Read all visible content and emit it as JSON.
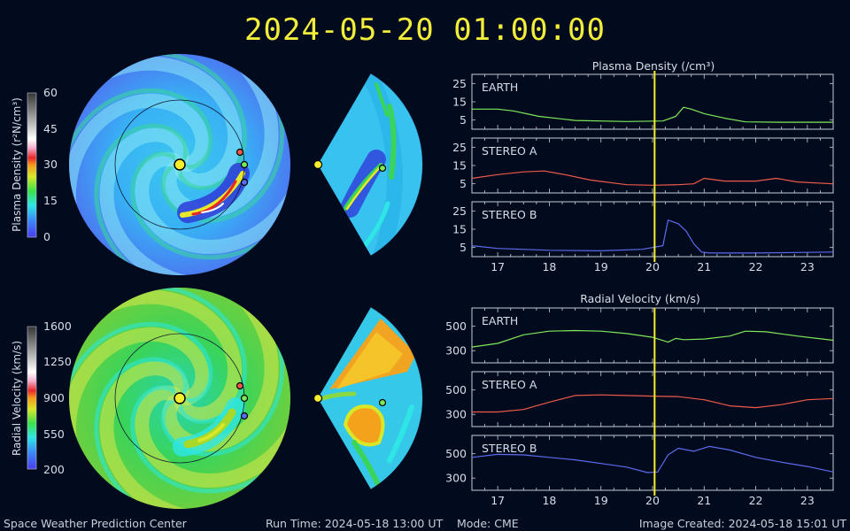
{
  "header": {
    "date_time": "2024-05-20 01:00:00"
  },
  "footer": {
    "center": "Space Weather Prediction Center",
    "run_time": "Run Time: 2024-05-18 13:00 UT",
    "mode": "Mode: CME",
    "image_created": "Image Created: 2024-05-18 15:01 UT"
  },
  "colors": {
    "earth": "#7ee85a",
    "stereo_a": "#ee5a4a",
    "stereo_b": "#5a6cf0",
    "marker": "#f6ee2c"
  },
  "density_colorbar": {
    "label": "Plasma Density (r²N/cm³)",
    "ticks": [
      "60",
      "45",
      "30",
      "15",
      "0"
    ]
  },
  "velocity_colorbar": {
    "label": "Radial Velocity (km/s)",
    "ticks": [
      "1600",
      "1250",
      "900",
      "550",
      "200"
    ]
  },
  "chart_data": [
    {
      "type": "line",
      "title": "Plasma Density (/cm³)",
      "x_ticks": [
        "17",
        "18",
        "19",
        "20",
        "21",
        "22",
        "23"
      ],
      "xlim": [
        16.5,
        23.5
      ],
      "ylim": [
        0,
        30
      ],
      "y_ticks": [
        "25",
        "15",
        "5"
      ],
      "current_time": 20.04,
      "series": [
        {
          "name": "EARTH",
          "x": [
            16.5,
            17.0,
            17.3,
            17.8,
            18.5,
            19.5,
            20.2,
            20.45,
            20.6,
            20.75,
            21.0,
            21.4,
            21.8,
            22.5,
            23.5
          ],
          "values": [
            11,
            11,
            10,
            7,
            4.8,
            4.2,
            4.5,
            7,
            12,
            11,
            8.5,
            6,
            4,
            3.8,
            3.8
          ]
        },
        {
          "name": "STEREO A",
          "x": [
            16.5,
            17.0,
            17.5,
            17.9,
            18.3,
            18.8,
            19.5,
            20.0,
            20.5,
            20.8,
            21.0,
            21.4,
            22.0,
            22.4,
            22.8,
            23.5
          ],
          "values": [
            8,
            10,
            11.5,
            12,
            10,
            7,
            4.5,
            4.2,
            4.5,
            5,
            8,
            6.5,
            6.5,
            8,
            6,
            5
          ]
        },
        {
          "name": "STEREO B",
          "x": [
            16.5,
            17.0,
            18.0,
            19.0,
            19.8,
            20.2,
            20.3,
            20.5,
            20.65,
            20.8,
            20.95,
            21.1,
            22.0,
            23.5
          ],
          "values": [
            6,
            4.5,
            3.5,
            3.2,
            4,
            6,
            20,
            18,
            14,
            7,
            2.5,
            2,
            2,
            2.5
          ]
        }
      ]
    },
    {
      "type": "line",
      "title": "Radial Velocity (km/s)",
      "x_ticks": [
        "17",
        "18",
        "19",
        "20",
        "21",
        "22",
        "23"
      ],
      "xlim": [
        16.5,
        23.5
      ],
      "ylim": [
        200,
        650
      ],
      "y_ticks": [
        "500",
        "300"
      ],
      "current_time": 20.04,
      "series": [
        {
          "name": "EARTH",
          "x": [
            16.5,
            17.0,
            17.5,
            18.0,
            18.5,
            19.0,
            19.5,
            20.0,
            20.3,
            20.45,
            20.6,
            21.0,
            21.5,
            21.8,
            22.2,
            22.8,
            23.5
          ],
          "values": [
            330,
            360,
            430,
            460,
            465,
            460,
            440,
            410,
            370,
            400,
            390,
            395,
            420,
            460,
            455,
            420,
            385
          ]
        },
        {
          "name": "STEREO A",
          "x": [
            16.5,
            17.0,
            17.5,
            18.0,
            18.5,
            19.0,
            19.5,
            20.0,
            20.5,
            21.0,
            21.5,
            22.0,
            22.5,
            23.0,
            23.5
          ],
          "values": [
            320,
            320,
            340,
            400,
            455,
            460,
            455,
            450,
            445,
            420,
            370,
            355,
            380,
            420,
            430
          ]
        },
        {
          "name": "STEREO B",
          "x": [
            16.5,
            17.0,
            17.5,
            18.0,
            18.5,
            19.0,
            19.5,
            19.9,
            20.1,
            20.3,
            20.5,
            20.8,
            21.1,
            21.5,
            22.0,
            22.5,
            23.0,
            23.5
          ],
          "values": [
            470,
            495,
            490,
            470,
            450,
            420,
            390,
            345,
            350,
            490,
            545,
            520,
            560,
            530,
            470,
            430,
            395,
            350
          ]
        }
      ]
    }
  ]
}
